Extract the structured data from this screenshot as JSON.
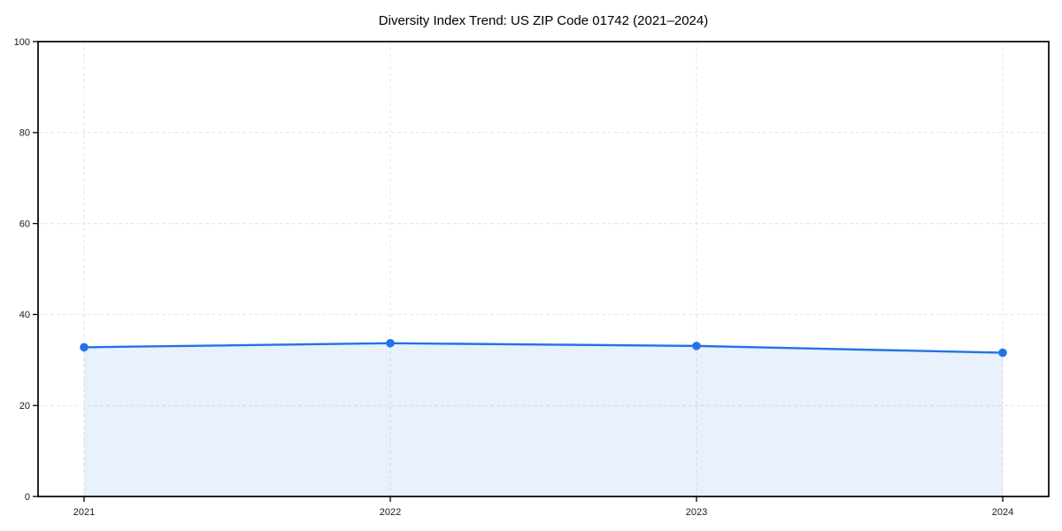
{
  "page": {
    "background_color": "#ffffff"
  },
  "chart_data": {
    "type": "area",
    "title": "Diversity Index Trend: US ZIP Code 01742 (2021–2024)",
    "categories": [
      "2021",
      "2022",
      "2023",
      "2024"
    ],
    "series": [
      {
        "name": "Diversity Index",
        "values": [
          32.8,
          33.7,
          33.1,
          31.6
        ]
      }
    ],
    "xlabel": "",
    "ylabel": "",
    "ylim": [
      0,
      100
    ],
    "yticks": [
      0,
      20,
      40,
      60,
      80,
      100
    ],
    "grid": true,
    "grid_style": "dashed",
    "legend_position": "none",
    "markers": true,
    "line_color": "#2273e6",
    "marker_color": "#2273e6",
    "fill_color": "rgba(34,115,230,0.10)",
    "axis_color": "#000000",
    "gridline_color": "#e4e4e4",
    "tick_label_color": "#1a1a1a"
  }
}
